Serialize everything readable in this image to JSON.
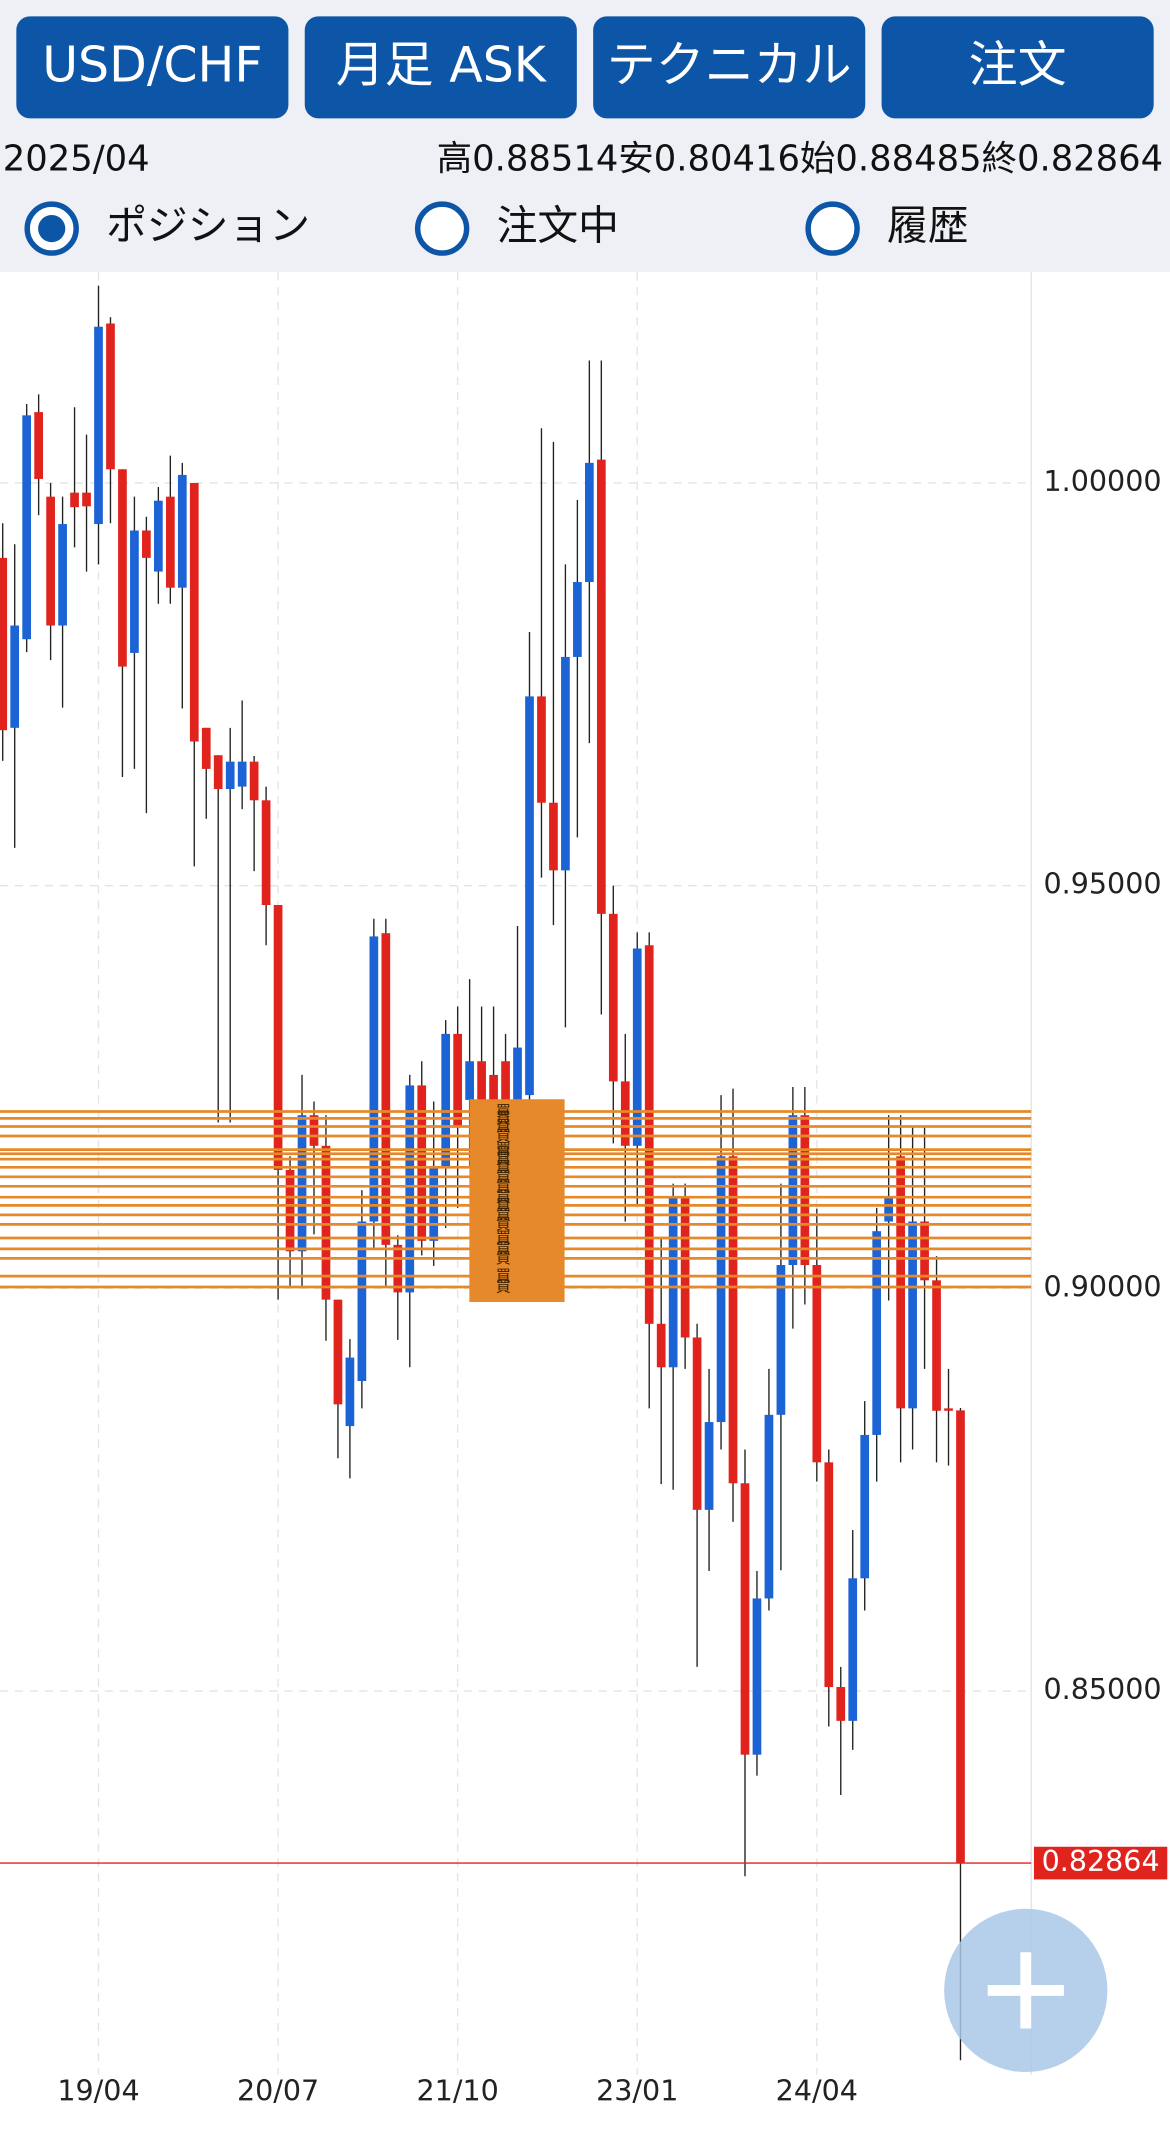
{
  "header": {
    "buttons": [
      "USD/CHF",
      "月足 ASK",
      "テクニカル",
      "注文"
    ],
    "period": "2025/04",
    "ohlc": [
      {
        "label": "高",
        "value": "0.88514"
      },
      {
        "label": "安",
        "value": "0.80416"
      },
      {
        "label": "始",
        "value": "0.88485"
      },
      {
        "label": "終",
        "value": "0.82864"
      }
    ],
    "tabs": [
      {
        "label": "ポジション",
        "selected": true
      },
      {
        "label": "注文中",
        "selected": false
      },
      {
        "label": "履歴",
        "selected": false
      }
    ]
  },
  "chart_data": {
    "type": "candlestick",
    "categories": [
      null,
      null,
      null,
      null,
      null,
      null,
      null,
      null,
      "19/04",
      null,
      null,
      null,
      null,
      null,
      null,
      null,
      null,
      null,
      null,
      null,
      null,
      null,
      null,
      "20/07",
      null,
      null,
      null,
      null,
      null,
      null,
      null,
      null,
      null,
      null,
      null,
      null,
      null,
      null,
      "21/10",
      null,
      null,
      null,
      null,
      null,
      null,
      null,
      null,
      null,
      null,
      null,
      null,
      null,
      null,
      "23/01",
      null,
      null,
      null,
      null,
      null,
      null,
      null,
      null,
      null,
      null,
      null,
      null,
      null,
      null,
      "24/04",
      null,
      null,
      null,
      null,
      null,
      null,
      null,
      null,
      null,
      null,
      null,
      null
    ],
    "open": [
      0.9907,
      0.9696,
      0.9806,
      1.0088,
      0.9983,
      0.9823,
      0.9988,
      0.9988,
      0.9949,
      1.0198,
      1.0017,
      0.9789,
      0.9941,
      0.989,
      0.9983,
      0.987,
      1.0,
      0.9696,
      0.9662,
      0.962,
      0.9623,
      0.9654,
      0.9606,
      0.9476,
      0.9147,
      0.9046,
      0.9215,
      0.9177,
      0.8986,
      0.8829,
      0.8885,
      0.9083,
      0.9441,
      0.9054,
      0.8995,
      0.9252,
      0.9059,
      0.915,
      0.9316,
      0.9234,
      0.9282,
      0.9265,
      0.9282,
      0.9215,
      0.924,
      0.9735,
      0.9603,
      0.9519,
      0.9784,
      0.9877,
      1.0029,
      0.9465,
      0.9257,
      0.9177,
      0.9426,
      0.8956,
      0.8902,
      0.9113,
      0.8939,
      0.8725,
      0.8834,
      0.9164,
      0.8758,
      0.8421,
      0.8615,
      0.8843,
      0.9029,
      0.9215,
      0.9029,
      0.8784,
      0.8505,
      0.8463,
      0.864,
      0.8818,
      0.9083,
      0.9164,
      0.8851,
      0.9083,
      0.901,
      0.8851,
      0.88485
    ],
    "high": [
      0.995,
      0.9924,
      1.0098,
      1.011,
      1.0,
      0.9983,
      1.0094,
      1.006,
      1.0245,
      1.0206,
      1.0017,
      0.9983,
      0.9958,
      0.9995,
      1.0034,
      1.0025,
      1.0,
      0.9696,
      0.9662,
      0.9696,
      0.973,
      0.9661,
      0.9623,
      0.9476,
      0.9164,
      0.9265,
      0.9232,
      0.9215,
      0.8986,
      0.8937,
      0.9122,
      0.9459,
      0.9459,
      0.9066,
      0.9265,
      0.9282,
      0.9232,
      0.9333,
      0.935,
      0.9384,
      0.935,
      0.935,
      0.9316,
      0.945,
      0.9815,
      1.0068,
      1.0051,
      0.9899,
      0.9979,
      1.0152,
      1.0152,
      0.95,
      0.9316,
      0.9442,
      0.9442,
      0.9063,
      0.913,
      0.913,
      0.8956,
      0.89,
      0.924,
      0.9248,
      0.88,
      0.8649,
      0.89,
      0.913,
      0.925,
      0.925,
      0.9099,
      0.88,
      0.853,
      0.87,
      0.886,
      0.91,
      0.9215,
      0.9215,
      0.92,
      0.92,
      0.904,
      0.89,
      0.88514
    ],
    "low": [
      0.9655,
      0.9547,
      0.979,
      0.996,
      0.978,
      0.9721,
      0.992,
      0.989,
      0.9899,
      0.995,
      0.9635,
      0.9645,
      0.959,
      0.985,
      0.985,
      0.972,
      0.9524,
      0.9583,
      0.9206,
      0.9206,
      0.9595,
      0.9518,
      0.9426,
      0.8986,
      0.9003,
      0.9003,
      0.9067,
      0.8935,
      0.8789,
      0.8764,
      0.8851,
      0.9049,
      0.9003,
      0.8936,
      0.8902,
      0.9041,
      0.9028,
      0.9075,
      0.91,
      0.915,
      0.918,
      0.918,
      0.915,
      0.915,
      0.92,
      0.951,
      0.9451,
      0.9324,
      0.956,
      0.9677,
      0.934,
      0.918,
      0.9083,
      0.9102,
      0.8851,
      0.8757,
      0.875,
      0.89,
      0.853,
      0.8649,
      0.88,
      0.871,
      0.827,
      0.8395,
      0.86,
      0.865,
      0.895,
      0.898,
      0.876,
      0.8456,
      0.8371,
      0.8427,
      0.86,
      0.876,
      0.8985,
      0.8784,
      0.88,
      0.89,
      0.8784,
      0.878,
      0.80416
    ],
    "close": [
      0.9693,
      0.9823,
      1.0084,
      1.0005,
      0.9823,
      0.9949,
      0.997,
      0.9971,
      1.0194,
      1.0017,
      0.9772,
      0.9941,
      0.9907,
      0.9978,
      0.987,
      1.001,
      0.9679,
      0.9645,
      0.962,
      0.9654,
      0.9654,
      0.9606,
      0.9476,
      0.9147,
      0.9046,
      0.9215,
      0.9177,
      0.8986,
      0.8856,
      0.8914,
      0.9083,
      0.9437,
      0.9054,
      0.8995,
      0.9252,
      0.9059,
      0.915,
      0.9316,
      0.92,
      0.9282,
      0.9232,
      0.9232,
      0.9215,
      0.9299,
      0.9735,
      0.9603,
      0.9519,
      0.9784,
      0.9877,
      1.0025,
      0.9465,
      0.9257,
      0.9177,
      0.9422,
      0.8956,
      0.8902,
      0.9113,
      0.8939,
      0.8725,
      0.8834,
      0.9164,
      0.8758,
      0.8421,
      0.8615,
      0.8843,
      0.9029,
      0.9215,
      0.9029,
      0.8784,
      0.8505,
      0.8463,
      0.864,
      0.8818,
      0.9071,
      0.9113,
      0.8851,
      0.9083,
      0.901,
      0.8848,
      0.8848,
      0.82864
    ],
    "up_color": "#1c63d5",
    "down_color": "#e1231d",
    "ylim": [
      0.80236,
      1.02618
    ],
    "yticks": [
      {
        "value": 0.85,
        "label": "0.85000"
      },
      {
        "value": 0.9,
        "label": "0.90000"
      },
      {
        "value": 0.95,
        "label": "0.95000"
      },
      {
        "value": 1,
        "label": "1.00000"
      }
    ],
    "grid": true,
    "positions": [
      {
        "side": "買",
        "price": 0.92196
      },
      {
        "side": "買",
        "price": 0.92111
      },
      {
        "side": "買",
        "price": 0.9201
      },
      {
        "side": "買",
        "price": 0.91892
      },
      {
        "side": "買",
        "price": 0.91723
      },
      {
        "side": "買",
        "price": 0.91672
      },
      {
        "side": "買",
        "price": 0.91605
      },
      {
        "side": "買",
        "price": 0.91503
      },
      {
        "side": "買",
        "price": 0.91385
      },
      {
        "side": "買",
        "price": 0.91267
      },
      {
        "side": "買",
        "price": 0.91132
      },
      {
        "side": "買",
        "price": 0.9103
      },
      {
        "side": "買",
        "price": 0.90912
      },
      {
        "side": "買",
        "price": 0.90794
      },
      {
        "side": "買",
        "price": 0.90625
      },
      {
        "side": "買",
        "price": 0.9049
      },
      {
        "side": "買",
        "price": 0.90372
      },
      {
        "side": "買",
        "price": 0.90152
      },
      {
        "side": "買",
        "price": 0.90017
      }
    ],
    "position_color": "#e6892a",
    "current_price": 0.82864,
    "current_color": "#e1231d"
  }
}
